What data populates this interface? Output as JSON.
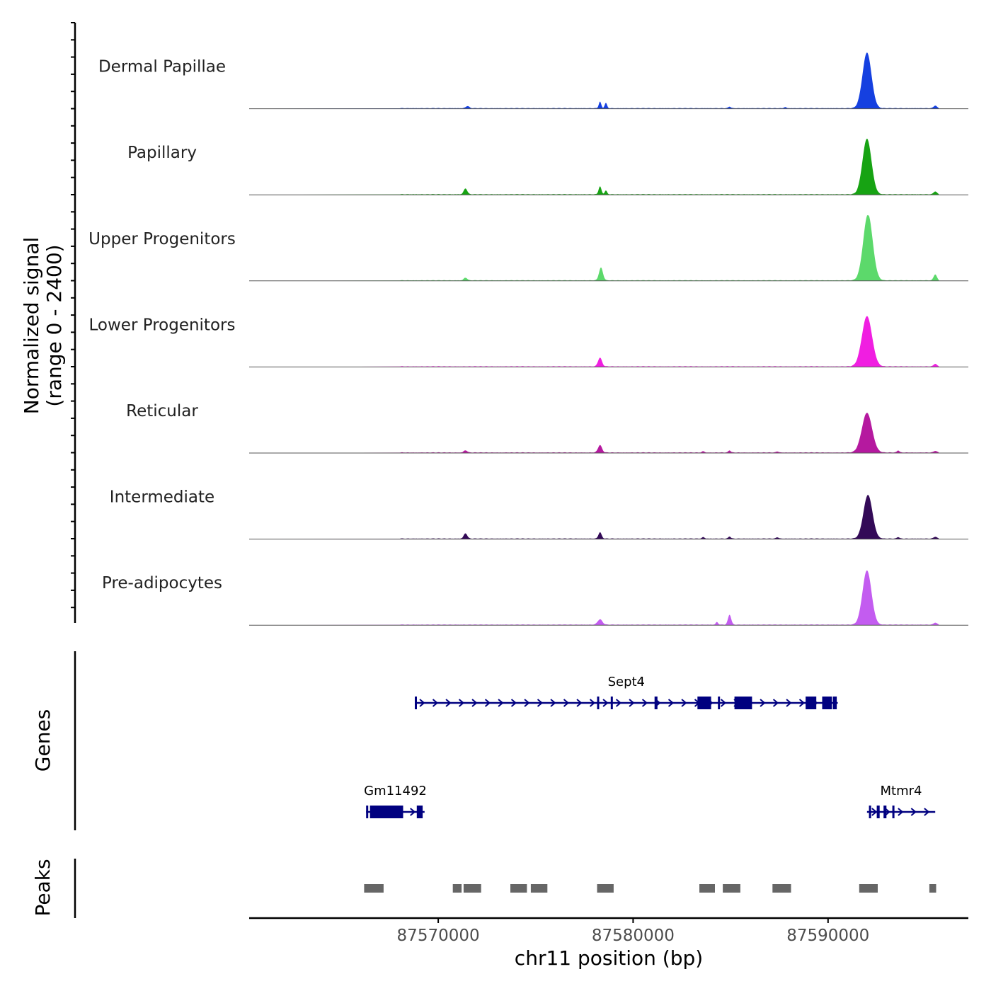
{
  "chart_data": {
    "type": "area",
    "title": "",
    "chromosome": "chr11",
    "xlabel": "chr11 position (bp)",
    "ylabel_line1": "Normalized signal",
    "ylabel_line2": "(range 0 - 2400)",
    "signal_range": [
      0,
      2400
    ],
    "xlim": [
      87560300,
      87597200
    ],
    "x_ticks": [
      {
        "value": 87570000,
        "label": "87570000"
      },
      {
        "value": 87580000,
        "label": "87580000"
      },
      {
        "value": 87590000,
        "label": "87590000"
      }
    ],
    "series": [
      {
        "name": "Dermal Papillae",
        "color": "#1540E0",
        "peaks": [
          [
            87571500,
            80,
            90
          ],
          [
            87578300,
            250,
            60
          ],
          [
            87578600,
            200,
            60
          ],
          [
            87584950,
            60,
            60
          ],
          [
            87587800,
            40,
            60
          ],
          [
            87592000,
            2100,
            230
          ],
          [
            87595500,
            100,
            80
          ]
        ]
      },
      {
        "name": "Papillary",
        "color": "#17A313",
        "peaks": [
          [
            87571400,
            220,
            90
          ],
          [
            87578300,
            300,
            70
          ],
          [
            87578600,
            140,
            60
          ],
          [
            87592000,
            2100,
            230
          ],
          [
            87595500,
            110,
            80
          ]
        ]
      },
      {
        "name": "Upper Progenitors",
        "color": "#5CD96B",
        "peaks": [
          [
            87571400,
            100,
            90
          ],
          [
            87578350,
            480,
            100
          ],
          [
            87592050,
            2500,
            240
          ],
          [
            87595500,
            230,
            80
          ]
        ]
      },
      {
        "name": "Lower Progenitors",
        "color": "#F01EE1",
        "peaks": [
          [
            87578300,
            330,
            100
          ],
          [
            87592000,
            1900,
            260
          ],
          [
            87595500,
            100,
            80
          ]
        ]
      },
      {
        "name": "Reticular",
        "color": "#B5199F",
        "peaks": [
          [
            87571400,
            80,
            90
          ],
          [
            87578300,
            280,
            100
          ],
          [
            87583600,
            50,
            60
          ],
          [
            87584950,
            80,
            60
          ],
          [
            87587400,
            40,
            60
          ],
          [
            87592000,
            1500,
            260
          ],
          [
            87593600,
            80,
            60
          ],
          [
            87595500,
            60,
            80
          ]
        ]
      },
      {
        "name": "Intermediate",
        "color": "#330A57",
        "peaks": [
          [
            87571400,
            200,
            90
          ],
          [
            87578300,
            240,
            80
          ],
          [
            87583600,
            60,
            60
          ],
          [
            87584950,
            80,
            60
          ],
          [
            87587400,
            50,
            60
          ],
          [
            87592050,
            1650,
            230
          ],
          [
            87593600,
            60,
            60
          ],
          [
            87595500,
            70,
            80
          ]
        ]
      },
      {
        "name": "Pre-adipocytes",
        "color": "#C35CF0",
        "peaks": [
          [
            87578300,
            200,
            120
          ],
          [
            87584300,
            100,
            60
          ],
          [
            87584950,
            380,
            80
          ],
          [
            87592000,
            2050,
            230
          ],
          [
            87595500,
            80,
            80
          ]
        ]
      }
    ],
    "genes_label": "Genes",
    "genes": [
      {
        "name": "Sept4",
        "start": 87568800,
        "end": 87590500,
        "strand": "+",
        "exons": [
          [
            87568800,
            87568900
          ],
          [
            87578150,
            87578250
          ],
          [
            87578850,
            87578950
          ],
          [
            87581100,
            87581250
          ],
          [
            87583300,
            87584000
          ],
          [
            87584350,
            87584450
          ],
          [
            87585200,
            87586100
          ],
          [
            87588850,
            87589400
          ],
          [
            87589700,
            87590200
          ],
          [
            87590250,
            87590450
          ]
        ]
      },
      {
        "name": "Gm11492",
        "start": 87566300,
        "end": 87569300,
        "strand": "+",
        "exons": [
          [
            87566300,
            87566400
          ],
          [
            87566500,
            87568200
          ],
          [
            87568900,
            87569200
          ]
        ]
      },
      {
        "name": "Mtmr4",
        "start": 87592000,
        "end": 87595500,
        "strand": "+",
        "exons": [
          [
            87592100,
            87592200
          ],
          [
            87592500,
            87592650
          ],
          [
            87592850,
            87593000
          ],
          [
            87593300,
            87593400
          ]
        ]
      }
    ],
    "peaks_label": "Peaks",
    "peak_regions": [
      [
        87566200,
        87567200
      ],
      [
        87570750,
        87571200
      ],
      [
        87571300,
        87572200
      ],
      [
        87573700,
        87574550
      ],
      [
        87574750,
        87575600
      ],
      [
        87578150,
        87579000
      ],
      [
        87583400,
        87584200
      ],
      [
        87584600,
        87585500
      ],
      [
        87587150,
        87588100
      ],
      [
        87591600,
        87592550
      ],
      [
        87595200,
        87595550
      ]
    ]
  }
}
